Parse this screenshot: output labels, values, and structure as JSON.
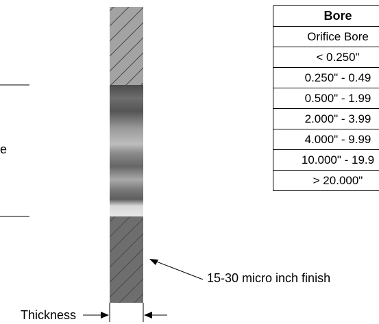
{
  "labels": {
    "left_partial": "e",
    "finish": "15-30 micro inch finish",
    "thickness": "Thickness"
  },
  "table": {
    "title": "Bore",
    "header": "Orifice Bore",
    "rows": [
      "< 0.250\"",
      "0.250\" - 0.49",
      "0.500\" - 1.99",
      "2.000\" - 3.99",
      "4.000\" - 9.99",
      "10.000\" - 19.9",
      "> 20.000\""
    ]
  },
  "colors": {
    "hatch_light": "#a3a3a3",
    "hatch_dark": "#6e6e6e",
    "bore_metal": "#5a5a5a"
  }
}
